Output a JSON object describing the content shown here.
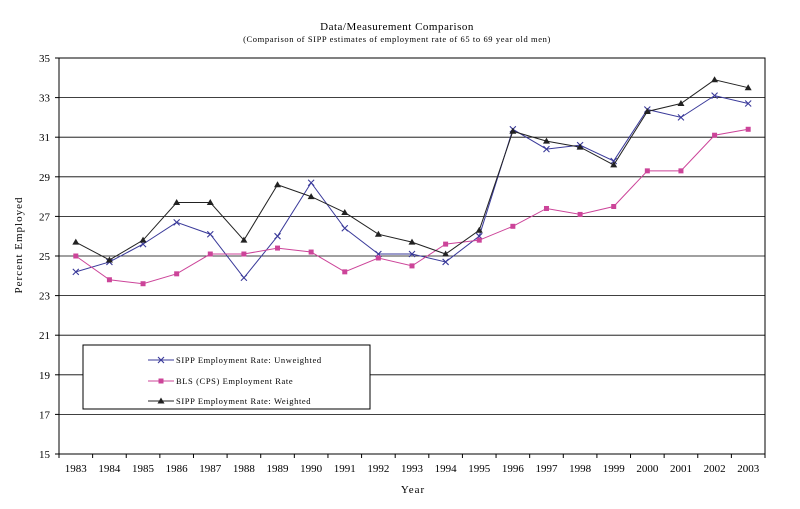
{
  "chart_data": {
    "type": "line",
    "title": "Data/Measurement Comparison",
    "subtitle": "(Comparison of SIPP estimates of employment rate of 65 to 69 year old men)",
    "xlabel": "Year",
    "ylabel": "Percent Employed",
    "ylim": [
      15,
      35
    ],
    "yticks": [
      15,
      17,
      19,
      21,
      23,
      25,
      27,
      29,
      31,
      33,
      35
    ],
    "grid": "horizontal",
    "legend_position": "bottom-left",
    "x": [
      "1983",
      "1984",
      "1985",
      "1986",
      "1987",
      "1988",
      "1989",
      "1990",
      "1991",
      "1992",
      "1993",
      "1994",
      "1995",
      "1996",
      "1997",
      "1998",
      "1999",
      "2000",
      "2001",
      "2002",
      "2003"
    ],
    "series": [
      {
        "name": "SIPP Employment Rate: Unweighted",
        "color": "#3a3a9a",
        "marker": "x",
        "values": [
          24.2,
          24.7,
          25.6,
          26.7,
          26.1,
          23.9,
          26.0,
          28.7,
          26.4,
          25.1,
          25.1,
          24.7,
          26.0,
          31.4,
          30.4,
          30.6,
          29.8,
          32.4,
          32.0,
          33.1,
          32.7
        ]
      },
      {
        "name": "BLS (CPS) Employment Rate",
        "color": "#cc4499",
        "marker": "square",
        "values": [
          25.0,
          23.8,
          23.6,
          24.1,
          25.1,
          25.1,
          25.4,
          25.2,
          24.2,
          24.9,
          24.5,
          25.6,
          25.8,
          26.5,
          27.4,
          27.1,
          27.5,
          29.3,
          29.3,
          31.1,
          31.4
        ]
      },
      {
        "name": "SIPP Employment Rate: Weighted",
        "color": "#222222",
        "marker": "triangle",
        "values": [
          25.7,
          24.8,
          25.8,
          27.7,
          27.7,
          25.8,
          28.6,
          28.0,
          27.2,
          26.1,
          25.7,
          25.1,
          26.3,
          31.3,
          30.8,
          30.5,
          29.6,
          32.3,
          32.7,
          33.9,
          33.5
        ]
      }
    ]
  }
}
